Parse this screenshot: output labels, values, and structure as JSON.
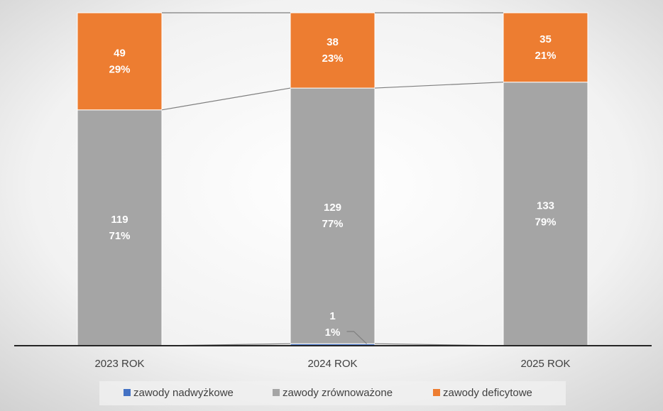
{
  "chart_data": {
    "type": "stacked_bar_100",
    "categories": [
      "2023 ROK",
      "2024 ROK",
      "2025 ROK"
    ],
    "series": [
      {
        "name": "zawody nadwyżkowe",
        "color": "#4472c4",
        "values": [
          0,
          1,
          0
        ],
        "percent_labels": [
          null,
          "1%",
          null
        ]
      },
      {
        "name": "zawody zrównoważone",
        "color": "#a5a5a5",
        "values": [
          119,
          129,
          133
        ],
        "percent_labels": [
          "71%",
          "77%",
          "79%"
        ]
      },
      {
        "name": "zawody deficytowe",
        "color": "#ed7d31",
        "values": [
          49,
          38,
          35
        ],
        "percent_labels": [
          "29%",
          "23%",
          "21%"
        ]
      }
    ],
    "legend": "bottom",
    "series_lines": true
  }
}
